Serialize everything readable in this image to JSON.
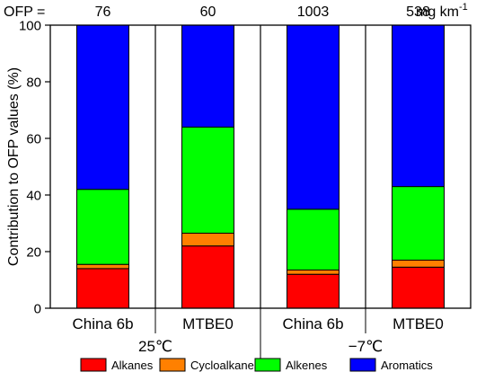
{
  "chart_data": {
    "type": "bar",
    "stacked": true,
    "ylabel": "Contribution to OFP values (%)",
    "ylim": [
      0,
      100
    ],
    "yticks": [
      0,
      20,
      40,
      60,
      80,
      100
    ],
    "categories": [
      "China 6b",
      "MTBE0",
      "China 6b",
      "MTBE0"
    ],
    "groups": [
      {
        "label": "25℃",
        "span": [
          0,
          1
        ]
      },
      {
        "label": "−7℃",
        "span": [
          2,
          3
        ]
      }
    ],
    "ofp": {
      "prefix": "OFP =",
      "values": [
        "76",
        "60",
        "1003",
        "538"
      ],
      "unit": "mg km",
      "unit_exp": "-1"
    },
    "series": [
      {
        "name": "Alkanes",
        "color": "#ff0000",
        "values": [
          14.0,
          22.0,
          12.0,
          14.5
        ]
      },
      {
        "name": "Cycloalkanes",
        "color": "#ff8000",
        "values": [
          1.5,
          4.5,
          1.5,
          2.5
        ]
      },
      {
        "name": "Alkenes",
        "color": "#00ff00",
        "values": [
          26.5,
          37.5,
          21.5,
          26.0
        ]
      },
      {
        "name": "Aromatics",
        "color": "#0000ff",
        "values": [
          58.0,
          36.0,
          65.0,
          57.0
        ]
      }
    ],
    "grid": false,
    "legend_position": "bottom"
  }
}
